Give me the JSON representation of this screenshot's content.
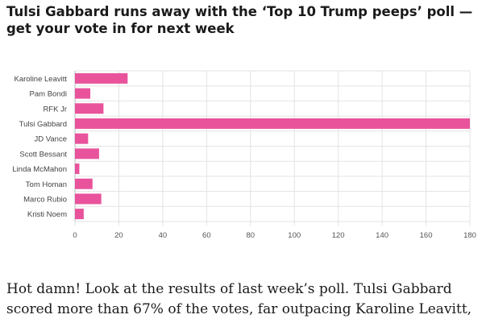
{
  "article": {
    "headline": "Tulsi Gabbard runs away with the ‘Top 10 Trump peeps’ poll — get your vote in for next week",
    "body": "Hot damn! Look at the results of last week’s poll. Tulsi Gabbard scored more than 67% of the votes, far outpacing Karoline Leavitt,"
  },
  "colors": {
    "bar": "#e8539b",
    "grid": "#e3e3e3",
    "axis": "#bdbdbd"
  },
  "chart_data": {
    "type": "bar",
    "orientation": "horizontal",
    "categories": [
      "Karoline Leavitt",
      "Pam Bondi",
      "RFK Jr",
      "Tulsi Gabbard",
      "JD Vance",
      "Scott Bessant",
      "Linda McMahon",
      "Tom Homan",
      "Marco Rubio",
      "Kristi Noem"
    ],
    "values": [
      24,
      7,
      13,
      180,
      6,
      11,
      2,
      8,
      12,
      4
    ],
    "xlim": [
      0,
      180
    ],
    "xticks": [
      "0",
      "20",
      "40",
      "60",
      "80",
      "100",
      "120",
      "140",
      "160",
      "180"
    ],
    "grid": true,
    "legend": "none"
  }
}
